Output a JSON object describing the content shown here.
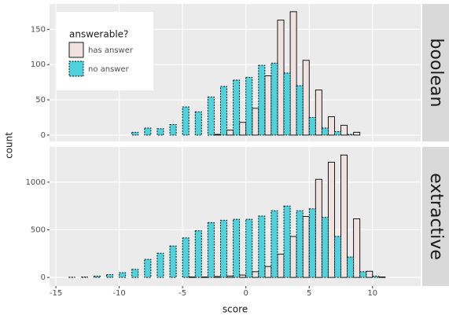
{
  "chart_data": [
    {
      "type": "histogram",
      "title": "boolean",
      "ylabel": "count",
      "legend_title": "answerable?",
      "legend": "top-left",
      "grid": true,
      "bins": [
        -14.5,
        -13.5,
        -12.5,
        -11.5,
        -10.5,
        -9.5,
        -8.5,
        -7.5,
        -6.5,
        -5.5,
        -4.5,
        -3.5,
        -2.5,
        -1.5,
        -0.5,
        0.5,
        1.5,
        2.5,
        3.5,
        4.5,
        5.5,
        6.5,
        7.5,
        8.5,
        9.5,
        10.5,
        11.5,
        12.5
      ],
      "series": [
        {
          "name": "has answer",
          "color": "#f0e2e1",
          "values": [
            0,
            0,
            0,
            0,
            0,
            0,
            0,
            0,
            0,
            0,
            0,
            0,
            1,
            7,
            18,
            38,
            84,
            163,
            175,
            106,
            64,
            26,
            14,
            4,
            0,
            0,
            0
          ]
        },
        {
          "name": "no answer",
          "color": "#50d2dc",
          "values": [
            0,
            0,
            0,
            0,
            0,
            4,
            10,
            9,
            15,
            40,
            33,
            54,
            69,
            78,
            82,
            99,
            102,
            88,
            70,
            25,
            10,
            5,
            1,
            0,
            0,
            0,
            0
          ]
        }
      ],
      "xlim": [
        -15.5,
        13.8
      ],
      "xticks": [
        -15,
        -10,
        -5,
        0,
        5,
        10
      ],
      "ylim": [
        -9,
        186
      ],
      "yticks": [
        0,
        50,
        100,
        150
      ]
    },
    {
      "type": "histogram",
      "title": "extractive",
      "xlabel": "score",
      "grid": true,
      "bins": [
        -14.5,
        -13.5,
        -12.5,
        -11.5,
        -10.5,
        -9.5,
        -8.5,
        -7.5,
        -6.5,
        -5.5,
        -4.5,
        -3.5,
        -2.5,
        -1.5,
        -0.5,
        0.5,
        1.5,
        2.5,
        3.5,
        4.5,
        5.5,
        6.5,
        7.5,
        8.5,
        9.5,
        10.5,
        11.5,
        12.5
      ],
      "series": [
        {
          "name": "has answer",
          "color": "#f0e2e1",
          "values": [
            0,
            0,
            0,
            0,
            0,
            0,
            0,
            0,
            0,
            0,
            5,
            5,
            10,
            15,
            25,
            60,
            115,
            245,
            430,
            640,
            1030,
            1210,
            1285,
            615,
            65,
            5,
            0
          ]
        },
        {
          "name": "no answer",
          "color": "#50d2dc",
          "values": [
            2,
            5,
            15,
            30,
            50,
            85,
            190,
            255,
            330,
            415,
            490,
            575,
            600,
            610,
            610,
            645,
            700,
            750,
            700,
            720,
            630,
            430,
            215,
            60,
            15,
            0,
            0
          ]
        }
      ],
      "xlim": [
        -15.5,
        13.8
      ],
      "xticks": [
        -15,
        -10,
        -5,
        0,
        5,
        10
      ],
      "ylim": [
        -90,
        1370
      ],
      "yticks": [
        0,
        500,
        1000
      ]
    }
  ]
}
